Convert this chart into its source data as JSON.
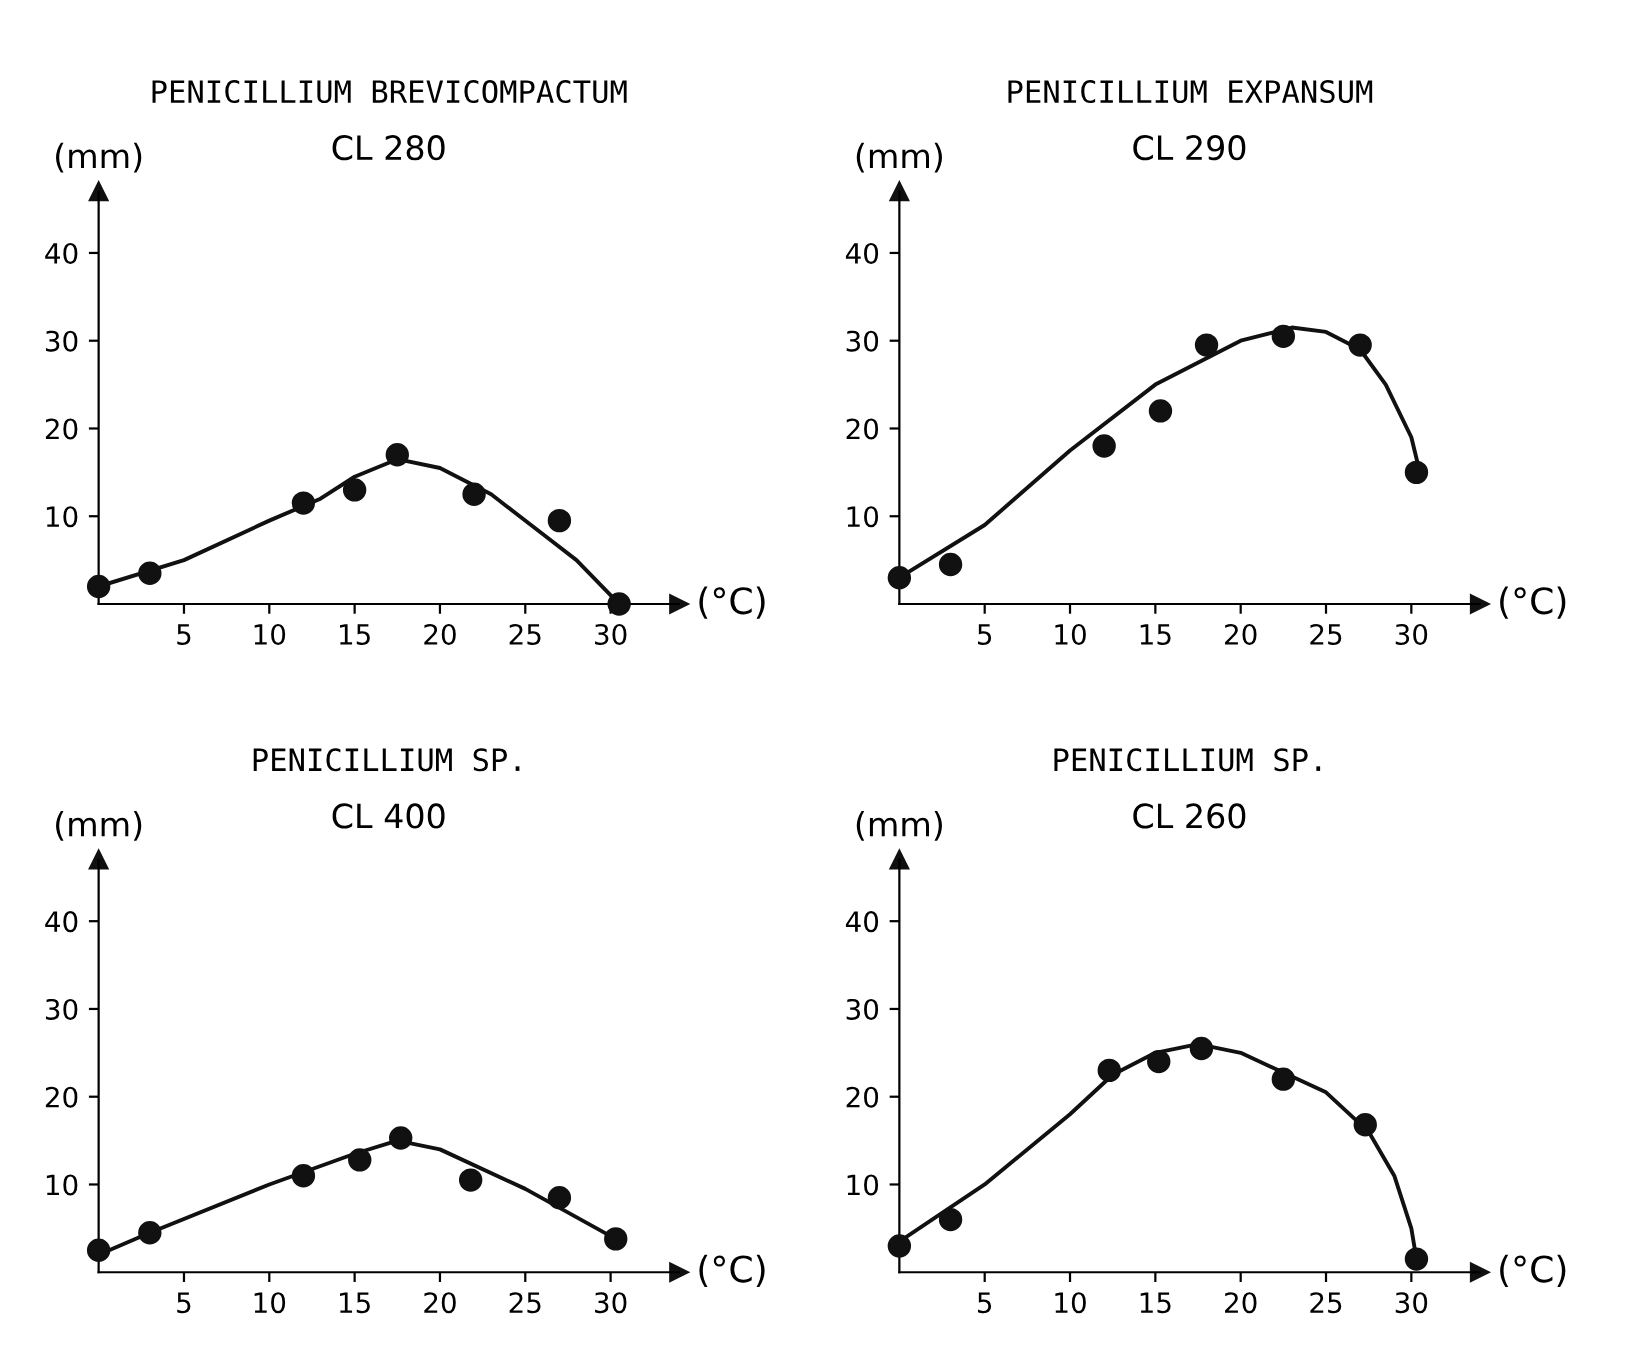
{
  "chart_data": [
    {
      "type": "scatter",
      "title": "PENICILLIUM BREVICOMPACTUM",
      "subtitle": "CL 280",
      "xlabel": "(°C)",
      "ylabel": "(mm)",
      "xlim": [
        0,
        34
      ],
      "ylim": [
        0,
        47
      ],
      "xticks": [
        5,
        10,
        15,
        20,
        25,
        30
      ],
      "yticks": [
        10,
        20,
        30,
        40
      ],
      "grid": false,
      "legend": false,
      "series": [
        {
          "color": "#111111",
          "marker": "circle",
          "x": [
            0,
            3,
            12,
            15,
            17.5,
            22,
            27,
            30.5
          ],
          "values": [
            2,
            3.5,
            11.5,
            13,
            17,
            12.5,
            9.5,
            0
          ]
        },
        {
          "type": "line",
          "color": "#111111",
          "marker": "none",
          "line_style": "solid",
          "x": [
            0,
            5,
            10,
            13,
            15,
            17.5,
            20,
            23,
            26,
            28,
            30.5
          ],
          "values": [
            2,
            5,
            9.5,
            12,
            14.5,
            16.5,
            15.5,
            12.5,
            8,
            5,
            0
          ]
        }
      ]
    },
    {
      "type": "scatter",
      "title": "PENICILLIUM EXPANSUM",
      "subtitle": "CL 290",
      "xlabel": "(°C)",
      "ylabel": "(mm)",
      "xlim": [
        0,
        34
      ],
      "ylim": [
        0,
        47
      ],
      "xticks": [
        5,
        10,
        15,
        20,
        25,
        30
      ],
      "yticks": [
        10,
        20,
        30,
        40
      ],
      "grid": false,
      "legend": false,
      "series": [
        {
          "color": "#111111",
          "marker": "circle",
          "x": [
            0,
            3,
            12,
            15.3,
            18,
            22.5,
            27,
            30.3
          ],
          "values": [
            3,
            4.5,
            18,
            22,
            29.5,
            30.5,
            29.5,
            15
          ]
        },
        {
          "type": "line",
          "color": "#111111",
          "marker": "none",
          "line_style": "solid",
          "x": [
            0,
            5,
            10,
            15,
            20,
            23,
            25,
            27,
            28.5,
            30,
            30.5
          ],
          "values": [
            3,
            9,
            17.5,
            25,
            30,
            31.5,
            31,
            29,
            25,
            19,
            15
          ]
        }
      ]
    },
    {
      "type": "scatter",
      "title": "PENICILLIUM SP.",
      "subtitle": "CL 400",
      "xlabel": "(°C)",
      "ylabel": "(mm)",
      "xlim": [
        0,
        34
      ],
      "ylim": [
        0,
        47
      ],
      "xticks": [
        5,
        10,
        15,
        20,
        25,
        30
      ],
      "yticks": [
        10,
        20,
        30,
        40
      ],
      "grid": false,
      "legend": false,
      "series": [
        {
          "color": "#111111",
          "marker": "circle",
          "x": [
            0,
            3,
            12,
            15.3,
            17.7,
            21.8,
            27,
            30.3
          ],
          "values": [
            2.5,
            4.5,
            11,
            12.8,
            15.3,
            10.5,
            8.5,
            3.8
          ]
        },
        {
          "type": "line",
          "color": "#111111",
          "marker": "none",
          "line_style": "solid",
          "x": [
            0,
            3,
            10,
            15,
            17.5,
            20,
            25,
            30.3
          ],
          "values": [
            2,
            4.5,
            10,
            13.5,
            15,
            14,
            9.5,
            3.8
          ]
        }
      ]
    },
    {
      "type": "scatter",
      "title": "PENICILLIUM SP.",
      "subtitle": "CL 260",
      "xlabel": "(°C)",
      "ylabel": "(mm)",
      "xlim": [
        0,
        34
      ],
      "ylim": [
        0,
        47
      ],
      "xticks": [
        5,
        10,
        15,
        20,
        25,
        30
      ],
      "yticks": [
        10,
        20,
        30,
        40
      ],
      "grid": false,
      "legend": false,
      "series": [
        {
          "color": "#111111",
          "marker": "circle",
          "x": [
            0,
            3,
            12.3,
            15.2,
            17.7,
            22.5,
            27.3,
            30.3
          ],
          "values": [
            3,
            6,
            23,
            24,
            25.5,
            22,
            16.8,
            1.5
          ]
        },
        {
          "type": "line",
          "color": "#111111",
          "marker": "none",
          "line_style": "solid",
          "x": [
            0,
            5,
            10,
            12.5,
            15,
            17.5,
            20,
            25,
            27.5,
            29,
            30,
            30.3
          ],
          "values": [
            3.5,
            10,
            18,
            22.5,
            25,
            26,
            25,
            20.5,
            16,
            11,
            5,
            1.5
          ]
        }
      ]
    }
  ]
}
